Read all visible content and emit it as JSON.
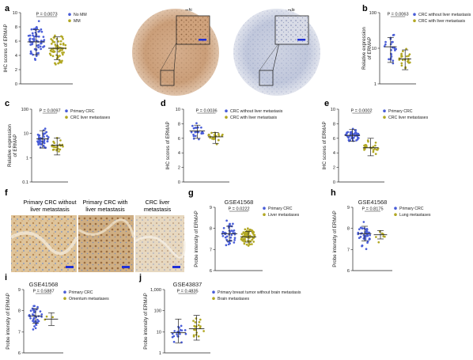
{
  "colors": {
    "blue": "#4a5ed8",
    "olive": "#b2a824",
    "line": "#222222",
    "ihc_brown": "#c79a73",
    "ihc_blue": "#8fa0c4",
    "scale": "#1f2fd6"
  },
  "panels": {
    "a": {
      "label": "a",
      "img_high": "ERMAP",
      "img_high_sup": "hi",
      "img_low": "ERMAP",
      "img_low_sup": "lo"
    },
    "b": {
      "label": "b"
    },
    "c": {
      "label": "c"
    },
    "d": {
      "label": "d"
    },
    "e": {
      "label": "e"
    },
    "f": {
      "label": "f",
      "captions": [
        [
          "Primary CRC without",
          "liver metastasis"
        ],
        [
          "Primary CRC with",
          "liver metastasis"
        ],
        [
          "CRC liver",
          "metastasis"
        ]
      ]
    },
    "g": {
      "label": "g"
    },
    "h": {
      "label": "h"
    },
    "i": {
      "label": "i"
    },
    "j": {
      "label": "j"
    }
  },
  "chart_data": [
    {
      "id": "a",
      "type": "scatter",
      "title": "",
      "ylabel": "IHC scores of ERMAP",
      "yscale": "linear",
      "ylim": [
        0,
        10
      ],
      "yticks": [
        0,
        2,
        4,
        6,
        8,
        10
      ],
      "pvalue": "P = 0.0073",
      "legend_placement": "top-right",
      "series": [
        {
          "name": "No MM",
          "color": "blue",
          "n": 64,
          "center": 5.9,
          "spread": 2.0,
          "sd_low": 4.1,
          "sd_high": 7.6
        },
        {
          "name": "MM",
          "color": "olive",
          "n": 60,
          "center": 5.0,
          "spread": 1.8,
          "sd_low": 3.4,
          "sd_high": 6.6
        }
      ]
    },
    {
      "id": "b",
      "type": "scatter",
      "title": "",
      "ylabel": "Relative expression of ERMAP",
      "yscale": "log",
      "ylim": [
        1,
        100
      ],
      "yticks": [
        1,
        10,
        100
      ],
      "pvalue": "P = 0.0063",
      "legend_placement": "top-right",
      "series": [
        {
          "name": "CRC without liver metastasis",
          "color": "blue",
          "n": 24,
          "center": 11,
          "spread": 0.45,
          "sd_low": 4,
          "sd_high": 20
        },
        {
          "name": "CRC with liver metastasis",
          "color": "olive",
          "n": 24,
          "center": 5,
          "spread": 0.35,
          "sd_low": 2.5,
          "sd_high": 9
        }
      ]
    },
    {
      "id": "c",
      "type": "scatter",
      "title": "",
      "ylabel": "Relative expression of ERMAP",
      "yscale": "log",
      "ylim": [
        0.1,
        100
      ],
      "yticks": [
        0.1,
        1,
        10,
        100
      ],
      "pvalue": "P = 0.0097",
      "legend_placement": "top-right",
      "series": [
        {
          "name": "Primary CRC",
          "color": "blue",
          "n": 42,
          "center": 6,
          "spread": 0.45,
          "sd_low": 2.5,
          "sd_high": 13
        },
        {
          "name": "CRC liver metastases",
          "color": "olive",
          "n": 22,
          "center": 3.3,
          "spread": 0.4,
          "sd_low": 1.3,
          "sd_high": 6.5
        }
      ]
    },
    {
      "id": "d",
      "type": "scatter",
      "title": "",
      "ylabel": "IHC scores of ERMAP",
      "yscale": "linear",
      "ylim": [
        0,
        10
      ],
      "yticks": [
        0,
        2,
        4,
        6,
        8,
        10
      ],
      "pvalue": "P = 0.0036",
      "legend_placement": "top-right",
      "series": [
        {
          "name": "CRC without liver metastasis",
          "color": "blue",
          "n": 22,
          "center": 7.0,
          "spread": 0.9,
          "sd_low": 6.0,
          "sd_high": 7.8
        },
        {
          "name": "CRC with liver metastasis",
          "color": "olive",
          "n": 22,
          "center": 6.2,
          "spread": 0.8,
          "sd_low": 5.3,
          "sd_high": 6.8
        }
      ]
    },
    {
      "id": "e",
      "type": "scatter",
      "title": "",
      "ylabel": "IHC scores of ERMAP",
      "yscale": "linear",
      "ylim": [
        0,
        10
      ],
      "yticks": [
        0,
        2,
        4,
        6,
        8,
        10
      ],
      "pvalue": "P = 0.0002",
      "legend_placement": "top-right",
      "series": [
        {
          "name": "Primary CRC",
          "color": "blue",
          "n": 42,
          "center": 6.4,
          "spread": 0.9,
          "sd_low": 5.6,
          "sd_high": 7.2
        },
        {
          "name": "CRC liver metastases",
          "color": "olive",
          "n": 22,
          "center": 4.7,
          "spread": 1.2,
          "sd_low": 3.6,
          "sd_high": 6.0
        }
      ]
    },
    {
      "id": "g",
      "type": "scatter",
      "title": "GSE41568",
      "ylabel": "Probe intensity of ERMAP",
      "yscale": "linear",
      "ylim": [
        6,
        9
      ],
      "yticks": [
        6,
        7,
        8,
        9
      ],
      "pvalue": "P = 0.0222",
      "legend_placement": "top-right",
      "series": [
        {
          "name": "Primary CRC",
          "color": "blue",
          "n": 40,
          "center": 7.75,
          "spread": 0.45,
          "sd_low": 7.4,
          "sd_high": 8.1
        },
        {
          "name": "Liver metastases",
          "color": "olive",
          "n": 70,
          "center": 7.6,
          "spread": 0.3,
          "sd_low": 7.35,
          "sd_high": 7.85
        }
      ]
    },
    {
      "id": "h",
      "type": "scatter",
      "title": "GSE41568",
      "ylabel": "Probe intensity of ERMAP",
      "yscale": "linear",
      "ylim": [
        6,
        9
      ],
      "yticks": [
        6,
        7,
        8,
        9
      ],
      "pvalue": "P = 0.8175",
      "legend_placement": "top-right",
      "series": [
        {
          "name": "Primary CRC",
          "color": "blue",
          "n": 40,
          "center": 7.75,
          "spread": 0.45,
          "sd_low": 7.4,
          "sd_high": 8.1
        },
        {
          "name": "Lung metastases",
          "color": "olive",
          "n": 7,
          "center": 7.7,
          "spread": 0.25,
          "sd_low": 7.5,
          "sd_high": 7.9
        }
      ]
    },
    {
      "id": "i",
      "type": "scatter",
      "title": "GSE41568",
      "ylabel": "Probe intensity of ERMAP",
      "yscale": "linear",
      "ylim": [
        6,
        9
      ],
      "yticks": [
        6,
        7,
        8,
        9
      ],
      "pvalue": "P = 0.5887",
      "legend_placement": "top-right",
      "series": [
        {
          "name": "Primary CRC",
          "color": "blue",
          "n": 40,
          "center": 7.75,
          "spread": 0.45,
          "sd_low": 7.4,
          "sd_high": 8.1
        },
        {
          "name": "Omentum metastases",
          "color": "olive",
          "n": 3,
          "center": 7.6,
          "spread": 0.25,
          "sd_low": 7.3,
          "sd_high": 7.9
        }
      ]
    },
    {
      "id": "j",
      "type": "scatter",
      "title": "GSE43837",
      "ylabel": "Probe intensity of ERMAP",
      "yscale": "log",
      "ylim": [
        1,
        1000
      ],
      "yticks": [
        1,
        10,
        100,
        1000
      ],
      "ytick_labels": [
        "1",
        "10",
        "100",
        "1,000"
      ],
      "pvalue": "P = 0.4835",
      "legend_placement": "top-right",
      "series": [
        {
          "name": "Primary breast tumor without brain metastasis",
          "color": "blue",
          "n": 19,
          "center": 9,
          "spread": 0.55,
          "sd_low": 3,
          "sd_high": 40
        },
        {
          "name": "Brain metastases",
          "color": "olive",
          "n": 19,
          "center": 14,
          "spread": 0.55,
          "sd_low": 4,
          "sd_high": 60
        }
      ]
    }
  ]
}
